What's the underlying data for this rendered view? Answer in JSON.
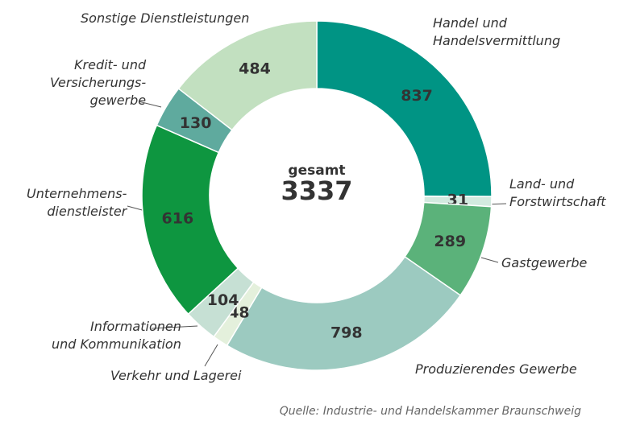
{
  "chart_data": {
    "type": "donut",
    "categories": [
      "Handel und\nHandelsvermittlung",
      "Land- und\nForstwirtschaft",
      "Gastgewerbe",
      "Produzierendes Gewerbe",
      "Verkehr und Lagerei",
      "Informationen\nund Kommunikation",
      "Unternehmens-\ndienstleister",
      "Kredit- und\nVersicherungs-\ngewerbe",
      "Sonstige Dienstleistungen"
    ],
    "values": [
      837,
      31,
      289,
      798,
      48,
      104,
      616,
      130,
      484
    ],
    "colors": [
      "#009484",
      "#d2eadf",
      "#5bb27a",
      "#9ccac0",
      "#e4f0dc",
      "#c6e0d4",
      "#0e9640",
      "#5faa9e",
      "#c2e0c0"
    ],
    "center_label": "gesamt",
    "total": 3337,
    "source": "Quelle: Industrie- und Handelskammer Braunschweig"
  }
}
